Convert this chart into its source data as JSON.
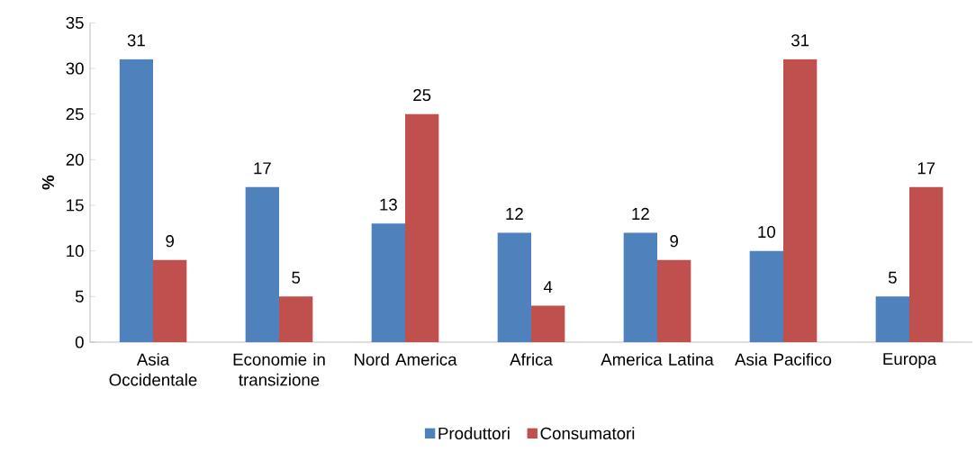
{
  "chart_data": {
    "type": "bar",
    "ylabel": "%",
    "categories": [
      "Asia Occidentale",
      "Economie in transizione",
      "Nord America",
      "Africa",
      "America Latina",
      "Asia Pacifico",
      "Europa"
    ],
    "series": [
      {
        "name": "Produttori",
        "color": "#4f81bd",
        "values": [
          31,
          17,
          13,
          12,
          12,
          10,
          5
        ]
      },
      {
        "name": "Consumatori",
        "color": "#c0504d",
        "values": [
          9,
          5,
          25,
          4,
          9,
          31,
          17
        ]
      }
    ],
    "ylim": [
      0,
      35
    ],
    "yticks": [
      0,
      5,
      10,
      15,
      20,
      25,
      30,
      35
    ],
    "grid": false,
    "legend": "bottom",
    "data_labels": true
  }
}
